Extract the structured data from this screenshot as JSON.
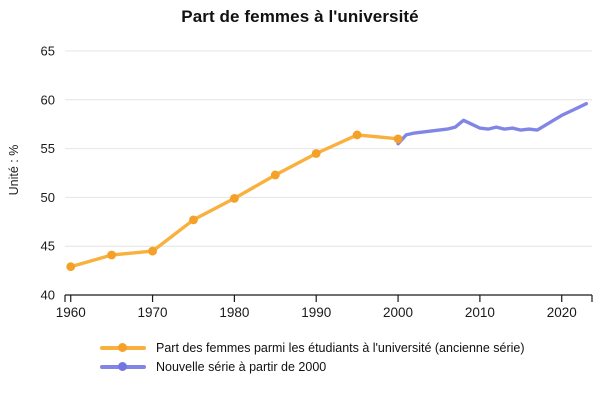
{
  "chart_data": {
    "type": "line",
    "title": "Part de femmes à l'université",
    "xlabel": "",
    "ylabel": "Unité : %",
    "ylim": [
      40,
      65
    ],
    "xlim": [
      1959.3,
      2023.7
    ],
    "y_ticks": [
      40,
      45,
      50,
      55,
      60,
      65
    ],
    "x_ticks": [
      1960,
      1970,
      1980,
      1990,
      2000,
      2010,
      2020
    ],
    "grid": true,
    "legend_position": "bottom-left",
    "series": [
      {
        "name": "Part des femmes parmi les étudiants à l'université (ancienne série)",
        "color": "#F9B13E",
        "marker_color": "#F5A027",
        "marker": "circle",
        "x": [
          1960,
          1965,
          1970,
          1975,
          1980,
          1985,
          1990,
          1995,
          2000
        ],
        "values": [
          42.9,
          44.1,
          44.5,
          47.7,
          49.9,
          52.3,
          54.5,
          56.4,
          56.0
        ]
      },
      {
        "name": "Nouvelle série à partir de 2000",
        "color": "#8186E6",
        "marker_color": "#7276DF",
        "marker": "none",
        "x": [
          2000,
          2001,
          2002,
          2003,
          2004,
          2005,
          2006,
          2007,
          2008,
          2009,
          2010,
          2011,
          2012,
          2013,
          2014,
          2015,
          2016,
          2017,
          2018,
          2019,
          2020,
          2021,
          2022,
          2023
        ],
        "values": [
          55.5,
          56.4,
          56.6,
          56.7,
          56.8,
          56.9,
          57.0,
          57.2,
          57.9,
          57.5,
          57.1,
          57.0,
          57.2,
          57.0,
          57.1,
          56.9,
          57.0,
          56.9,
          57.4,
          57.9,
          58.4,
          58.8,
          59.2,
          59.6
        ]
      }
    ],
    "axis_color": "#1a1a1a",
    "grid_color": "#e4e4e4",
    "tick_label_color": "#1a1a1a"
  }
}
